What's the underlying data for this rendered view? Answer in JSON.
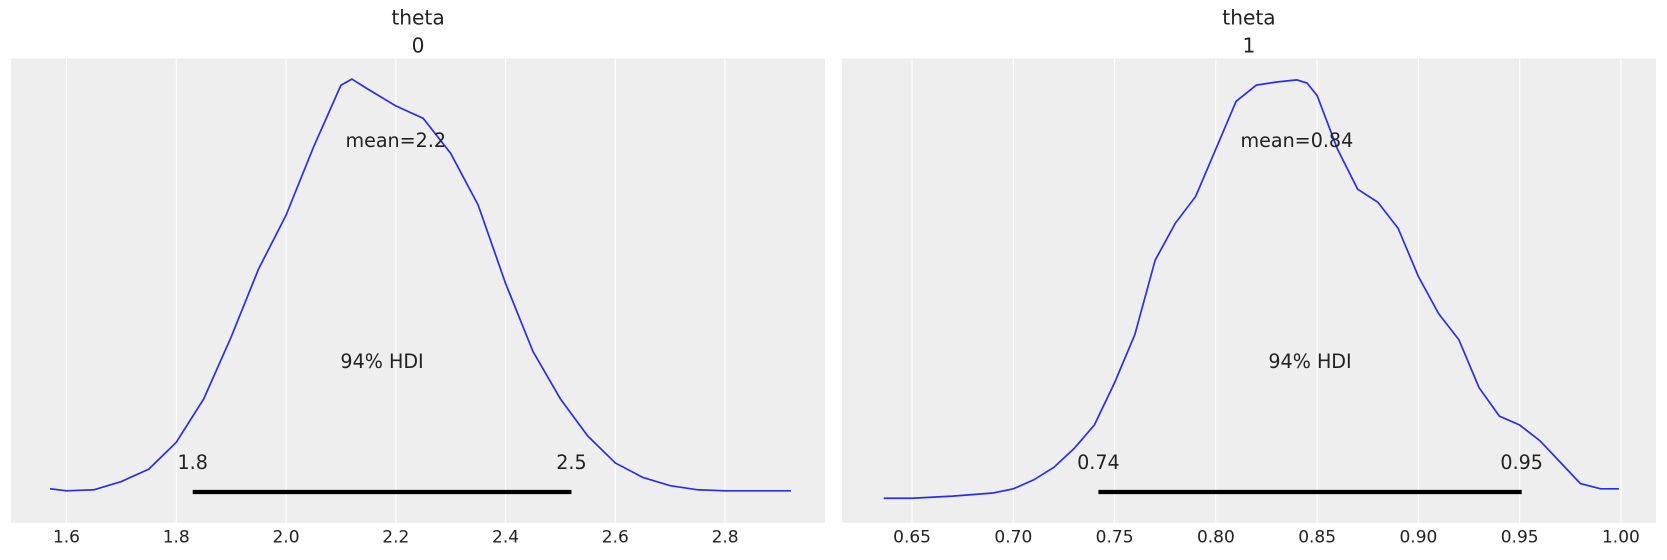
{
  "chart_data": [
    {
      "type": "density",
      "title": "theta",
      "subtitle": "0",
      "color": "#2a2eec",
      "grid": true,
      "x": [
        1.57,
        1.6,
        1.65,
        1.7,
        1.75,
        1.8,
        1.85,
        1.9,
        1.95,
        2.0,
        2.05,
        2.1,
        2.12,
        2.15,
        2.2,
        2.25,
        2.3,
        2.35,
        2.4,
        2.45,
        2.5,
        2.55,
        2.6,
        2.65,
        2.7,
        2.75,
        2.8,
        2.85,
        2.92
      ],
      "values": [
        0.015,
        0.005,
        0.01,
        0.05,
        0.11,
        0.24,
        0.45,
        0.75,
        1.08,
        1.34,
        1.67,
        1.97,
        2.0,
        1.95,
        1.87,
        1.81,
        1.64,
        1.39,
        1.01,
        0.68,
        0.45,
        0.27,
        0.14,
        0.07,
        0.03,
        0.01,
        0.005,
        0.005,
        0.005
      ],
      "xlim": [
        1.499,
        2.982
      ],
      "ylim": [
        -0.15,
        2.1
      ],
      "xticks": [
        1.6,
        1.8,
        {
          "value": 2,
          "label": "2.0"
        },
        2.2,
        2.4,
        2.6,
        2.8
      ],
      "mean": {
        "value": 2.2,
        "label": "mean=2.2"
      },
      "hdi": {
        "values": [
          1.83,
          2.52
        ],
        "value_labels": [
          "1.8",
          "2.5"
        ],
        "label": "94% HDI"
      }
    },
    {
      "type": "density",
      "title": "theta",
      "subtitle": "1",
      "color": "#2a2eec",
      "grid": true,
      "x": [
        0.636,
        0.65,
        0.67,
        0.69,
        0.7,
        0.71,
        0.72,
        0.73,
        0.74,
        0.75,
        0.76,
        0.77,
        0.78,
        0.79,
        0.8,
        0.81,
        0.82,
        0.83,
        0.84,
        0.845,
        0.85,
        0.86,
        0.87,
        0.88,
        0.89,
        0.9,
        0.91,
        0.92,
        0.93,
        0.94,
        0.95,
        0.96,
        0.97,
        0.98,
        0.99,
        0.999
      ],
      "values": [
        0.0,
        0.0,
        0.04,
        0.1,
        0.18,
        0.35,
        0.59,
        0.95,
        1.4,
        2.21,
        3.13,
        4.55,
        5.26,
        5.77,
        6.68,
        7.59,
        7.9,
        7.96,
        8.0,
        7.94,
        7.7,
        6.68,
        5.91,
        5.66,
        5.16,
        4.24,
        3.53,
        3.03,
        2.11,
        1.57,
        1.4,
        1.1,
        0.69,
        0.28,
        0.18,
        0.18
      ],
      "xlim": [
        0.6154,
        1.0173
      ],
      "ylim": [
        -0.47,
        8.41
      ],
      "xticks": [
        0.65,
        {
          "value": 0.7,
          "label": "0.70"
        },
        0.75,
        {
          "value": 0.8,
          "label": "0.80"
        },
        0.85,
        {
          "value": 0.9,
          "label": "0.90"
        },
        0.95,
        {
          "value": 1,
          "label": "1.00"
        }
      ],
      "mean": {
        "value": 0.84,
        "label": "mean=0.84"
      },
      "hdi": {
        "values": [
          0.742,
          0.951
        ],
        "value_labels": [
          "0.74",
          "0.95"
        ],
        "label": "94% HDI"
      }
    }
  ]
}
